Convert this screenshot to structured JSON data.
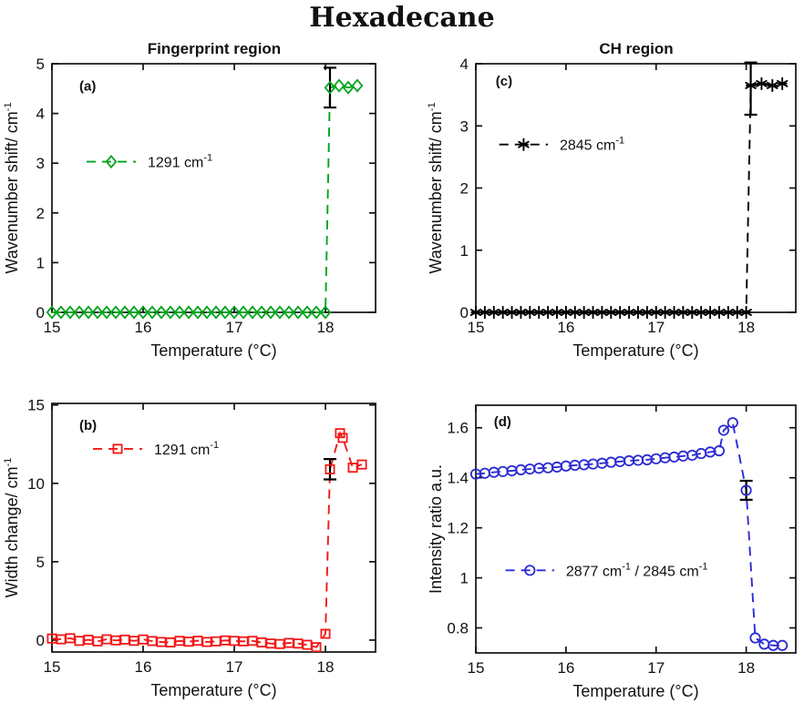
{
  "title": "Hexadecane",
  "colors": {
    "green": "#00a41f",
    "red": "#f31717",
    "blue": "#2b2bd5",
    "black": "#000000",
    "axis": "#111111",
    "background": "#ffffff"
  },
  "chart_data": [
    {
      "id": "a",
      "type": "line",
      "panel_label": "(a)",
      "region_title": "Fingerprint region",
      "xlabel": "Temperature (°C)",
      "ylabel": "Wavenumber shift/ cm^-1",
      "xlim": [
        15,
        18.55
      ],
      "ylim": [
        0,
        5
      ],
      "xticks": [
        15,
        16,
        17,
        18
      ],
      "yticks": [
        0,
        1,
        2,
        3,
        4,
        5
      ],
      "series": [
        {
          "name": "1291 cm^-1",
          "marker": "diamond",
          "color": "#00a41f",
          "linestyle": "dashed",
          "x": [
            15,
            15.1,
            15.2,
            15.3,
            15.4,
            15.5,
            15.6,
            15.7,
            15.8,
            15.9,
            16,
            16.1,
            16.2,
            16.3,
            16.4,
            16.5,
            16.6,
            16.7,
            16.8,
            16.9,
            17,
            17.1,
            17.2,
            17.3,
            17.4,
            17.5,
            17.6,
            17.7,
            17.8,
            17.9,
            18,
            18.05,
            18.15,
            18.25,
            18.35
          ],
          "y": [
            0,
            0,
            0,
            0,
            0,
            0,
            0,
            0,
            0,
            0,
            0,
            0,
            0,
            0,
            0,
            0,
            0,
            0,
            0,
            0,
            0,
            0,
            0,
            0,
            0,
            0,
            0,
            0,
            0,
            0,
            0,
            4.52,
            4.56,
            4.52,
            4.56
          ]
        }
      ],
      "error_bars": [
        {
          "x": 18.05,
          "y": 4.52,
          "err": 0.4
        }
      ],
      "legend": {
        "label": "1291 cm^-1",
        "x1": 15.38,
        "x2": 15.92,
        "y": 3.03,
        "text_x": 16.05
      },
      "panel_label_pos": {
        "x": 15.3,
        "y": 4.55
      }
    },
    {
      "id": "c",
      "type": "line",
      "panel_label": "(c)",
      "region_title": "CH region",
      "xlabel": "Temperature (°C)",
      "ylabel": "Wavenumber shift/ cm^-1",
      "xlim": [
        15,
        18.55
      ],
      "ylim": [
        0,
        4
      ],
      "xticks": [
        15,
        16,
        17,
        18
      ],
      "yticks": [
        0,
        1,
        2,
        3,
        4
      ],
      "series": [
        {
          "name": "2845 cm^-1",
          "marker": "asterisk",
          "color": "#000000",
          "linestyle": "dashed",
          "x": [
            15,
            15.1,
            15.2,
            15.3,
            15.4,
            15.5,
            15.6,
            15.7,
            15.8,
            15.9,
            16,
            16.1,
            16.2,
            16.3,
            16.4,
            16.5,
            16.6,
            16.7,
            16.8,
            16.9,
            17,
            17.1,
            17.2,
            17.3,
            17.4,
            17.5,
            17.6,
            17.7,
            17.8,
            17.9,
            18,
            18.05,
            18.17,
            18.29,
            18.4
          ],
          "y": [
            0,
            0,
            0,
            0,
            0,
            0,
            0,
            0,
            0,
            0,
            0,
            0,
            0,
            0,
            0,
            0,
            0,
            0,
            0,
            0,
            0,
            0,
            0,
            0,
            0,
            0,
            0,
            0,
            0,
            0,
            0,
            3.65,
            3.68,
            3.65,
            3.68
          ]
        }
      ],
      "error_bars": [
        {
          "x": 18.05,
          "y": 3.6,
          "err": 0.42
        }
      ],
      "legend": {
        "label": "2845 cm^-1",
        "x1": 15.26,
        "x2": 15.8,
        "y": 2.7,
        "text_x": 15.93
      },
      "panel_label_pos": {
        "x": 15.22,
        "y": 3.72
      }
    },
    {
      "id": "b",
      "type": "line",
      "panel_label": "(b)",
      "xlabel": "Temperature (°C)",
      "ylabel": "Width change/ cm^-1",
      "xlim": [
        15,
        18.55
      ],
      "ylim": [
        -0.76,
        15.1
      ],
      "xticks": [
        15,
        16,
        17,
        18
      ],
      "yticks": [
        0,
        5,
        10,
        15
      ],
      "series": [
        {
          "name": "1291 cm^-1",
          "marker": "square",
          "color": "#f31717",
          "linestyle": "dashed",
          "x": [
            15,
            15.1,
            15.2,
            15.3,
            15.4,
            15.5,
            15.6,
            15.7,
            15.8,
            15.9,
            16,
            16.1,
            16.2,
            16.3,
            16.4,
            16.5,
            16.6,
            16.7,
            16.8,
            16.9,
            17,
            17.1,
            17.2,
            17.3,
            17.4,
            17.5,
            17.6,
            17.7,
            17.8,
            17.9,
            18,
            18.05,
            18.16,
            18.19,
            18.3,
            18.4
          ],
          "y": [
            0.1,
            0.05,
            0.12,
            -0.05,
            0.02,
            -0.08,
            0.05,
            -0.02,
            0.03,
            -0.05,
            0.04,
            -0.06,
            -0.12,
            -0.15,
            -0.05,
            -0.1,
            -0.04,
            -0.12,
            -0.08,
            -0.02,
            -0.05,
            -0.08,
            -0.05,
            -0.15,
            -0.22,
            -0.25,
            -0.18,
            -0.22,
            -0.3,
            -0.45,
            0.4,
            10.9,
            13.2,
            12.9,
            11.0,
            11.2
          ]
        }
      ],
      "error_bars": [
        {
          "x": 18.05,
          "y": 10.9,
          "err": 0.65
        }
      ],
      "legend": {
        "label": "1291 cm^-1",
        "x1": 15.45,
        "x2": 15.99,
        "y": 12.2,
        "text_x": 16.12
      },
      "panel_label_pos": {
        "x": 15.3,
        "y": 13.7
      }
    },
    {
      "id": "d",
      "type": "line",
      "panel_label": "(d)",
      "xlabel": "Temperature (°C)",
      "ylabel": "Intensity ratio a.u.",
      "xlim": [
        15,
        18.55
      ],
      "ylim": [
        0.7,
        1.69
      ],
      "xticks": [
        15,
        16,
        17,
        18
      ],
      "yticks": [
        0.8,
        1,
        1.2,
        1.4,
        1.6
      ],
      "series": [
        {
          "name": "2877 cm^-1 / 2845 cm^-1",
          "marker": "circle",
          "color": "#2b2bd5",
          "linestyle": "dashed",
          "x": [
            15,
            15.1,
            15.2,
            15.3,
            15.4,
            15.5,
            15.6,
            15.7,
            15.8,
            15.9,
            16,
            16.1,
            16.2,
            16.3,
            16.4,
            16.5,
            16.6,
            16.7,
            16.8,
            16.9,
            17,
            17.1,
            17.2,
            17.3,
            17.4,
            17.5,
            17.6,
            17.7,
            17.75,
            17.85,
            18.0,
            18.1,
            18.2,
            18.3,
            18.4
          ],
          "y": [
            1.415,
            1.418,
            1.422,
            1.425,
            1.428,
            1.432,
            1.435,
            1.438,
            1.44,
            1.443,
            1.447,
            1.45,
            1.452,
            1.455,
            1.458,
            1.462,
            1.465,
            1.468,
            1.47,
            1.472,
            1.476,
            1.48,
            1.483,
            1.487,
            1.49,
            1.497,
            1.503,
            1.508,
            1.59,
            1.62,
            1.35,
            0.76,
            0.735,
            0.73,
            0.73
          ]
        }
      ],
      "error_bars": [
        {
          "x": 18.0,
          "y": 1.35,
          "err": 0.038
        }
      ],
      "legend": {
        "label": "2877 cm^-1 / 2845 cm^-1",
        "x1": 15.33,
        "x2": 15.87,
        "y": 1.03,
        "text_x": 16.0
      },
      "panel_label_pos": {
        "x": 15.2,
        "y": 1.625
      }
    }
  ]
}
